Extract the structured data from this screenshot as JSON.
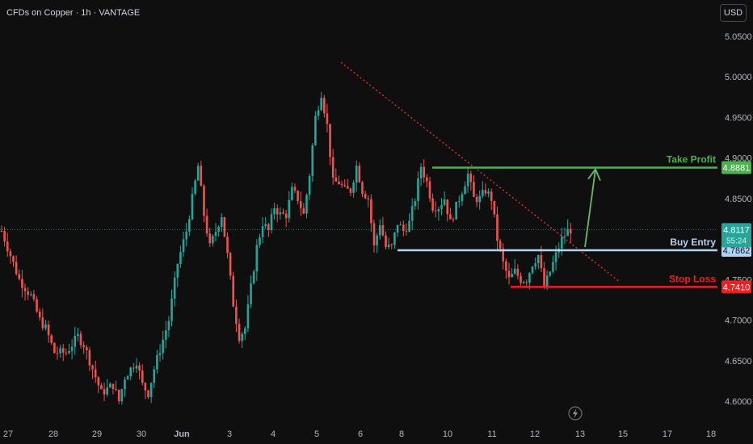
{
  "header": {
    "symbol_title": "CFDs on Copper · 1h · VANTAGE",
    "currency_button": "USD"
  },
  "colors": {
    "background": "#0f0f0f",
    "up": "#26a69a",
    "down": "#ef5350",
    "take_profit": "#4caf50",
    "entry": "#b3d3f5",
    "stop_loss": "#f01f1f",
    "trendline": "#e53935",
    "arrow": "#66bb6a",
    "axis_text": "#b2b5be"
  },
  "chart_data": {
    "type": "candlestick",
    "y_axis": {
      "min": 4.59,
      "max": 5.07,
      "ticks": [
        "5.0500",
        "5.0000",
        "4.9500",
        "4.9000",
        "4.8500",
        "4.8000",
        "4.7500",
        "4.7000",
        "4.6500",
        "4.6000"
      ]
    },
    "x_axis": {
      "ticks": [
        "27",
        "28",
        "29",
        "30",
        "Jun",
        "3",
        "4",
        "5",
        "6",
        "8",
        "10",
        "11",
        "12",
        "13",
        "15",
        "17",
        "18"
      ]
    },
    "price_path": [
      [
        0,
        4.81
      ],
      [
        6,
        4.75
      ],
      [
        10,
        4.73
      ],
      [
        13,
        4.7
      ],
      [
        15,
        4.69
      ],
      [
        18,
        4.66
      ],
      [
        22,
        4.66
      ],
      [
        26,
        4.68
      ],
      [
        28,
        4.67
      ],
      [
        32,
        4.63
      ],
      [
        34,
        4.61
      ],
      [
        38,
        4.62
      ],
      [
        40,
        4.6
      ],
      [
        42,
        4.63
      ],
      [
        46,
        4.65
      ],
      [
        48,
        4.62
      ],
      [
        50,
        4.61
      ],
      [
        52,
        4.64
      ],
      [
        57,
        4.7
      ],
      [
        60,
        4.77
      ],
      [
        63,
        4.81
      ],
      [
        65,
        4.85
      ],
      [
        67,
        4.89
      ],
      [
        69,
        4.83
      ],
      [
        71,
        4.79
      ],
      [
        73,
        4.81
      ],
      [
        75,
        4.83
      ],
      [
        77,
        4.78
      ],
      [
        79,
        4.72
      ],
      [
        81,
        4.68
      ],
      [
        83,
        4.69
      ],
      [
        85,
        4.74
      ],
      [
        87,
        4.79
      ],
      [
        89,
        4.82
      ],
      [
        91,
        4.81
      ],
      [
        93,
        4.84
      ],
      [
        95,
        4.83
      ],
      [
        97,
        4.83
      ],
      [
        99,
        4.86
      ],
      [
        101,
        4.85
      ],
      [
        103,
        4.83
      ],
      [
        105,
        4.88
      ],
      [
        107,
        4.95
      ],
      [
        109,
        4.98
      ],
      [
        111,
        4.94
      ],
      [
        113,
        4.87
      ],
      [
        115,
        4.87
      ],
      [
        117,
        4.86
      ],
      [
        119,
        4.86
      ],
      [
        121,
        4.89
      ],
      [
        123,
        4.86
      ],
      [
        125,
        4.85
      ],
      [
        127,
        4.79
      ],
      [
        129,
        4.82
      ],
      [
        131,
        4.79
      ],
      [
        133,
        4.79
      ],
      [
        135,
        4.82
      ],
      [
        137,
        4.81
      ],
      [
        139,
        4.82
      ],
      [
        141,
        4.85
      ],
      [
        143,
        4.89
      ],
      [
        145,
        4.87
      ],
      [
        147,
        4.84
      ],
      [
        149,
        4.84
      ],
      [
        151,
        4.85
      ],
      [
        153,
        4.82
      ],
      [
        155,
        4.84
      ],
      [
        157,
        4.86
      ],
      [
        159,
        4.88
      ],
      [
        161,
        4.85
      ],
      [
        163,
        4.85
      ],
      [
        165,
        4.86
      ],
      [
        167,
        4.85
      ],
      [
        169,
        4.8
      ],
      [
        171,
        4.77
      ],
      [
        173,
        4.75
      ],
      [
        175,
        4.76
      ],
      [
        177,
        4.75
      ],
      [
        179,
        4.75
      ],
      [
        181,
        4.77
      ],
      [
        183,
        4.78
      ],
      [
        185,
        4.74
      ],
      [
        187,
        4.76
      ],
      [
        189,
        4.78
      ],
      [
        191,
        4.8
      ],
      [
        193,
        4.81
      ],
      [
        194,
        4.8117
      ]
    ],
    "current_price": "4.8117",
    "countdown": "55:24",
    "levels": [
      {
        "name": "Take Profit",
        "price": 4.8881,
        "label": "4.8881"
      },
      {
        "name": "Buy Entry",
        "price": 4.7862,
        "label": "4.7862"
      },
      {
        "name": "Stop Loss",
        "price": 4.741,
        "label": "4.7410"
      }
    ],
    "trendline": {
      "from": {
        "date": "5 Jun",
        "price": 5.018
      },
      "to": {
        "date": "13 Jun",
        "price": 4.748
      }
    },
    "projection_arrow": {
      "from": 4.786,
      "to": 4.888
    }
  }
}
